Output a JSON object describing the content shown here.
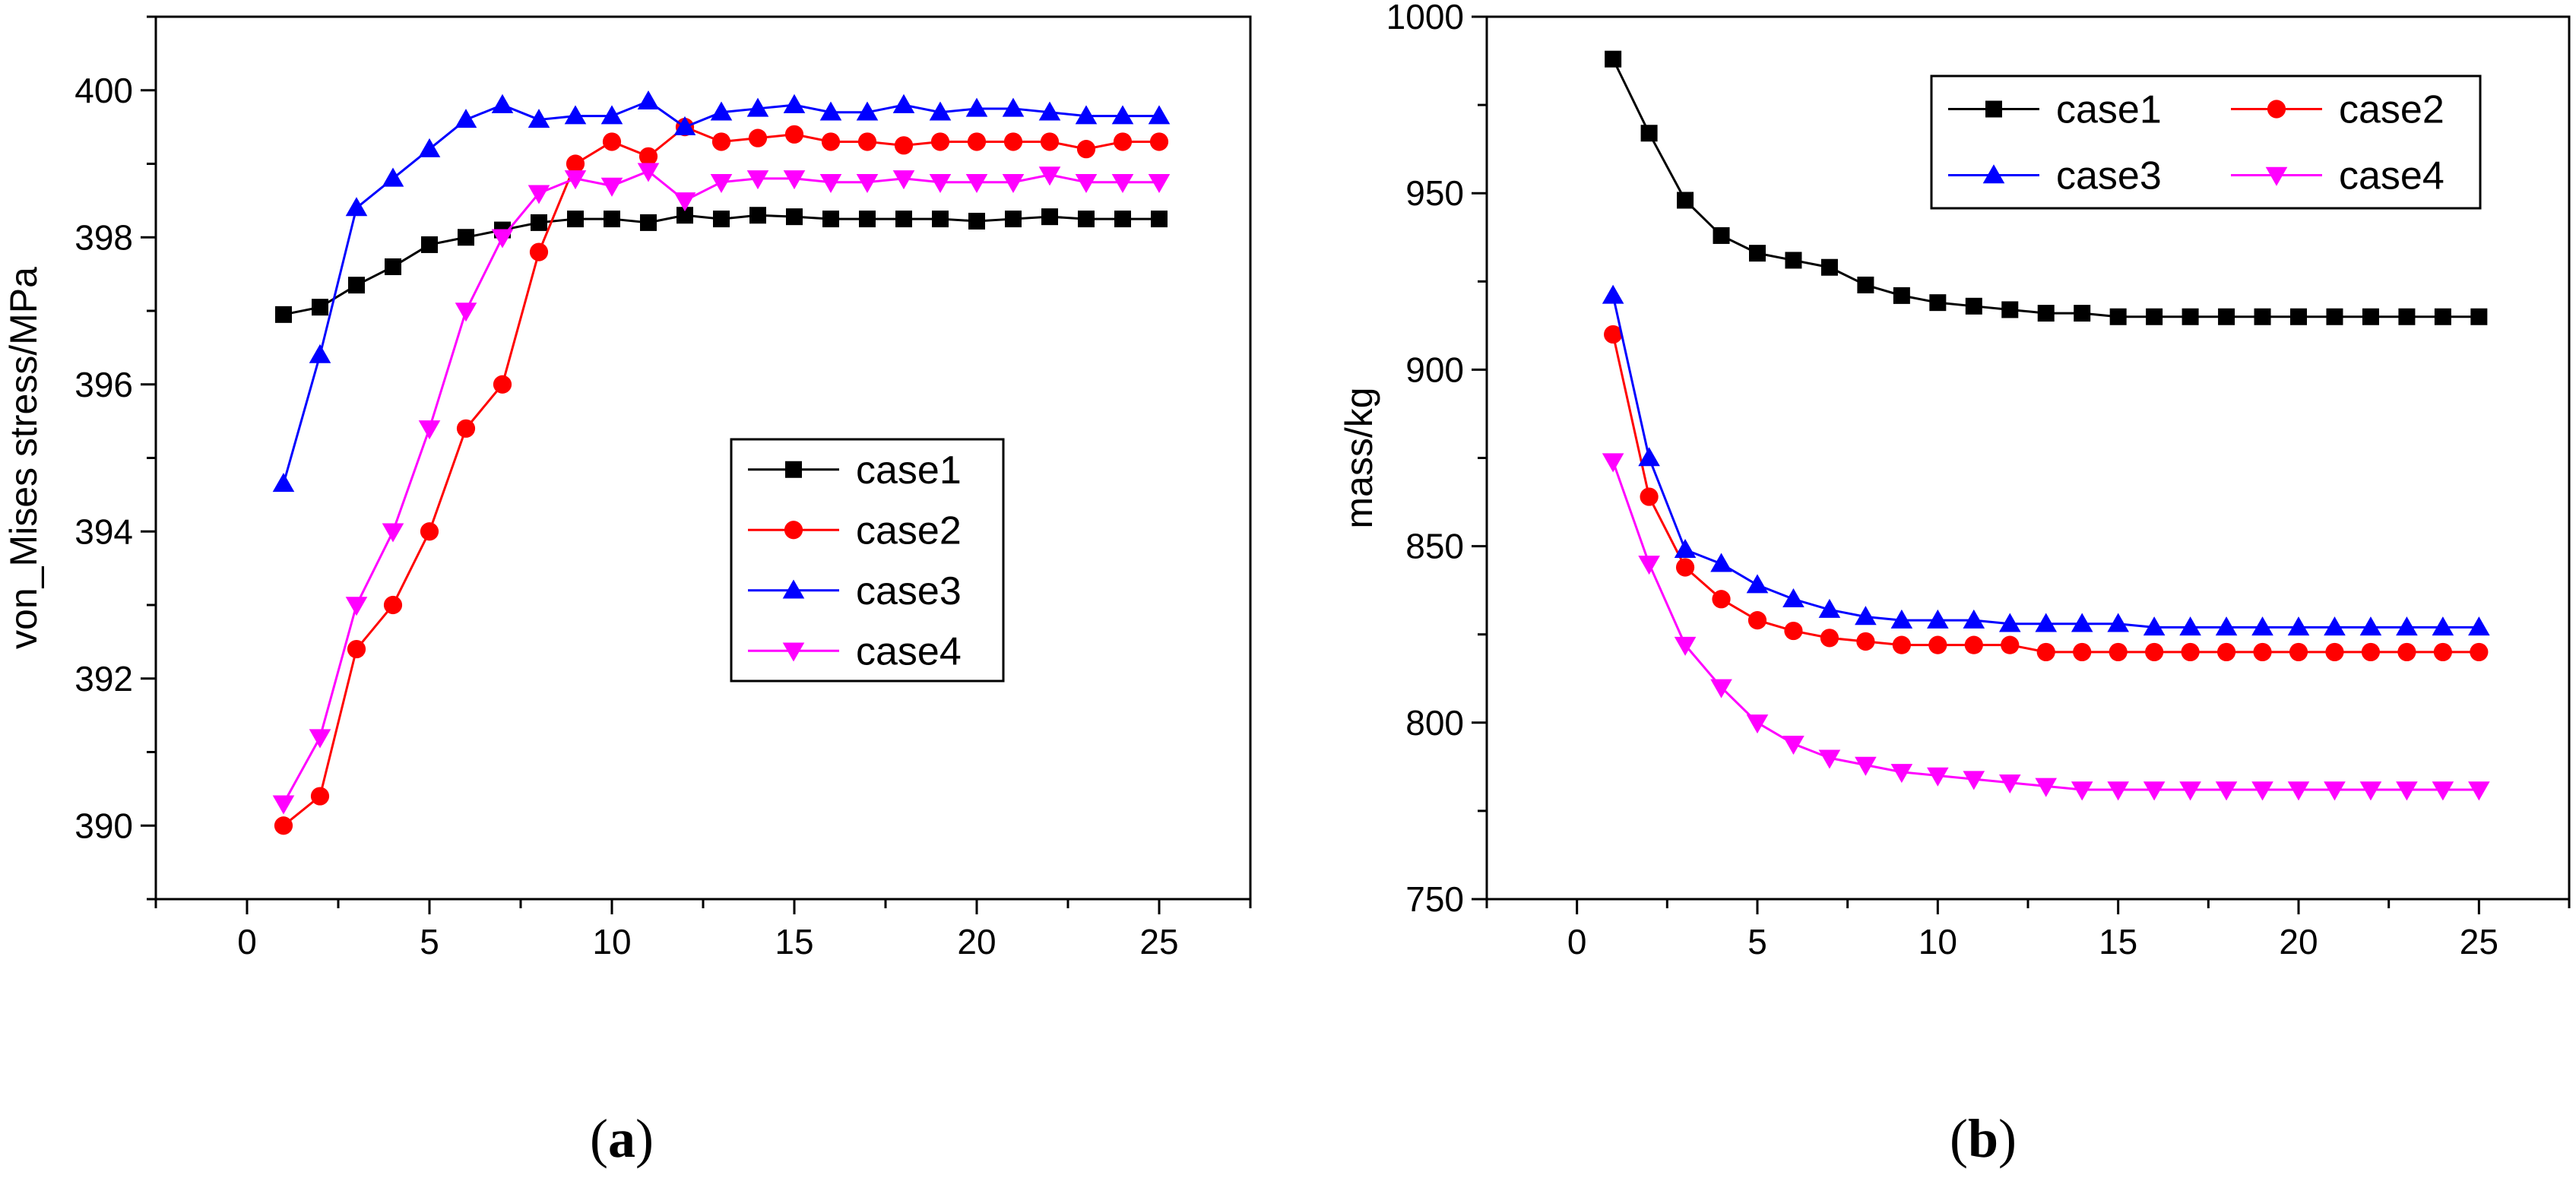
{
  "chart_data": [
    {
      "type": "line",
      "panel_label": "(a)",
      "panel_letter": "a",
      "xlabel": "",
      "ylabel": "von_Mises stress/MPa",
      "xlim": [
        -2.5,
        27.5
      ],
      "ylim": [
        389,
        401
      ],
      "x_ticks": [
        0,
        5,
        10,
        15,
        20,
        25
      ],
      "y_ticks": [
        390,
        392,
        394,
        396,
        398,
        400
      ],
      "legend_position": "center-right",
      "x": [
        1,
        2,
        3,
        4,
        5,
        6,
        7,
        8,
        9,
        10,
        11,
        12,
        13,
        14,
        15,
        16,
        17,
        18,
        19,
        20,
        21,
        22,
        23,
        24,
        25
      ],
      "series": [
        {
          "name": "case1",
          "color": "#000000",
          "marker": "square",
          "values": [
            396.95,
            397.05,
            397.35,
            397.6,
            397.9,
            398.0,
            398.1,
            398.2,
            398.25,
            398.25,
            398.2,
            398.3,
            398.25,
            398.3,
            398.28,
            398.25,
            398.25,
            398.25,
            398.25,
            398.22,
            398.25,
            398.28,
            398.25,
            398.25,
            398.25
          ]
        },
        {
          "name": "case2",
          "color": "#ff0000",
          "marker": "circle",
          "values": [
            390.0,
            390.4,
            392.4,
            393.0,
            394.0,
            395.4,
            396.0,
            397.8,
            399.0,
            399.3,
            399.1,
            399.5,
            399.3,
            399.35,
            399.4,
            399.3,
            399.3,
            399.25,
            399.3,
            399.3,
            399.3,
            399.3,
            399.2,
            399.3,
            399.3
          ]
        },
        {
          "name": "case3",
          "color": "#0000ff",
          "marker": "triangle-up",
          "values": [
            394.65,
            396.4,
            398.4,
            398.8,
            399.2,
            399.6,
            399.8,
            399.6,
            399.65,
            399.65,
            399.85,
            399.5,
            399.7,
            399.75,
            399.8,
            399.7,
            399.7,
            399.8,
            399.7,
            399.75,
            399.75,
            399.7,
            399.65,
            399.65,
            399.65
          ]
        },
        {
          "name": "case4",
          "color": "#ff00ff",
          "marker": "triangle-down",
          "values": [
            390.3,
            391.2,
            393.0,
            394.0,
            395.4,
            397.0,
            398.0,
            398.6,
            398.8,
            398.7,
            398.9,
            398.5,
            398.75,
            398.8,
            398.8,
            398.75,
            398.75,
            398.8,
            398.75,
            398.75,
            398.75,
            398.85,
            398.75,
            398.75,
            398.75
          ]
        }
      ]
    },
    {
      "type": "line",
      "panel_label": "(b)",
      "panel_letter": "b",
      "xlabel": "",
      "ylabel": "mass/kg",
      "xlim": [
        -2.5,
        27.5
      ],
      "ylim": [
        750,
        1000
      ],
      "x_ticks": [
        0,
        5,
        10,
        15,
        20,
        25
      ],
      "y_ticks": [
        750,
        800,
        850,
        900,
        950,
        1000
      ],
      "legend_position": "top-right",
      "x": [
        1,
        2,
        3,
        4,
        5,
        6,
        7,
        8,
        9,
        10,
        11,
        12,
        13,
        14,
        15,
        16,
        17,
        18,
        19,
        20,
        21,
        22,
        23,
        24,
        25
      ],
      "series": [
        {
          "name": "case1",
          "color": "#000000",
          "marker": "square",
          "values": [
            988,
            967,
            948,
            938,
            933,
            931,
            929,
            924,
            921,
            919,
            918,
            917,
            916,
            916,
            915,
            915,
            915,
            915,
            915,
            915,
            915,
            915,
            915,
            915,
            915
          ]
        },
        {
          "name": "case2",
          "color": "#ff0000",
          "marker": "circle",
          "values": [
            910,
            864,
            844,
            835,
            829,
            826,
            824,
            823,
            822,
            822,
            822,
            822,
            820,
            820,
            820,
            820,
            820,
            820,
            820,
            820,
            820,
            820,
            820,
            820,
            820
          ]
        },
        {
          "name": "case3",
          "color": "#0000ff",
          "marker": "triangle-up",
          "values": [
            921,
            875,
            849,
            845,
            839,
            835,
            832,
            830,
            829,
            829,
            829,
            828,
            828,
            828,
            828,
            827,
            827,
            827,
            827,
            827,
            827,
            827,
            827,
            827,
            827
          ]
        },
        {
          "name": "case4",
          "color": "#ff00ff",
          "marker": "triangle-down",
          "values": [
            874,
            845,
            822,
            810,
            800,
            794,
            790,
            788,
            786,
            785,
            784,
            783,
            782,
            781,
            781,
            781,
            781,
            781,
            781,
            781,
            781,
            781,
            781,
            781,
            781
          ]
        }
      ]
    }
  ]
}
